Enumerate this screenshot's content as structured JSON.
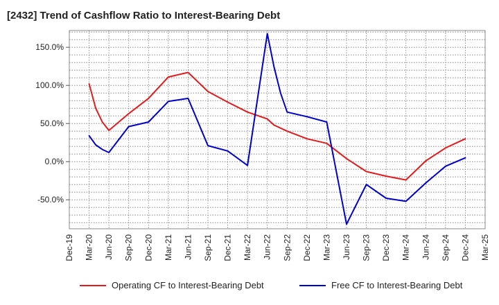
{
  "chart_data": {
    "type": "line",
    "title": "[2432]  Trend of Cashflow Ratio to Interest-Bearing Debt",
    "x_tick_labels": [
      "Dec-19",
      "Mar-20",
      "Jun-20",
      "Sep-20",
      "Dec-20",
      "Mar-21",
      "Jun-21",
      "Sep-21",
      "Dec-21",
      "Mar-22",
      "Jun-22",
      "Sep-22",
      "Dec-22",
      "Mar-23",
      "Jun-23",
      "Sep-23",
      "Dec-23",
      "Mar-24",
      "Jun-24",
      "Sep-24",
      "Dec-24",
      "Mar-25"
    ],
    "y_ticks": [
      -50,
      0,
      50,
      100,
      150
    ],
    "y_tick_labels": [
      "-50.0%",
      "0.0%",
      "50.0%",
      "100.0%",
      "150.0%"
    ],
    "ylim": [
      -88,
      172
    ],
    "grid": true,
    "legend_position": "bottom",
    "series": [
      {
        "name": "Operating CF to Interest-Bearing Debt",
        "color": "#e31a1c",
        "points": [
          [
            "Mar-20",
            102
          ],
          [
            "Apr-20",
            70
          ],
          [
            "May-20",
            52
          ],
          [
            "Jun-20",
            41
          ],
          [
            "Sep-20",
            63
          ],
          [
            "Dec-20",
            83
          ],
          [
            "Mar-21",
            111
          ],
          [
            "Jun-21",
            117
          ],
          [
            "Sep-21",
            92
          ],
          [
            "Dec-21",
            78
          ],
          [
            "Mar-22",
            65
          ],
          [
            "Jun-22",
            56
          ],
          [
            "Jul-22",
            48
          ],
          [
            "Sep-22",
            40
          ],
          [
            "Dec-22",
            30
          ],
          [
            "Mar-23",
            24
          ],
          [
            "Jun-23",
            4
          ],
          [
            "Sep-23",
            -13
          ],
          [
            "Dec-23",
            -19
          ],
          [
            "Mar-24",
            -24
          ],
          [
            "Jun-24",
            1
          ],
          [
            "Sep-24",
            18
          ],
          [
            "Dec-24",
            30
          ]
        ]
      },
      {
        "name": "Free CF to Interest-Bearing Debt",
        "color": "#0000cc",
        "points": [
          [
            "Mar-20",
            34
          ],
          [
            "Apr-20",
            22
          ],
          [
            "May-20",
            16
          ],
          [
            "Jun-20",
            12
          ],
          [
            "Sep-20",
            46
          ],
          [
            "Dec-20",
            52
          ],
          [
            "Mar-21",
            79
          ],
          [
            "Jun-21",
            83
          ],
          [
            "Sep-21",
            21
          ],
          [
            "Dec-21",
            14
          ],
          [
            "Mar-22",
            -5
          ],
          [
            "Jun-22",
            168
          ],
          [
            "Jul-22",
            125
          ],
          [
            "Aug-22",
            90
          ],
          [
            "Sep-22",
            65
          ],
          [
            "Dec-22",
            59
          ],
          [
            "Mar-23",
            52
          ],
          [
            "Jun-23",
            -82
          ],
          [
            "Sep-23",
            -30
          ],
          [
            "Dec-23",
            -48
          ],
          [
            "Mar-24",
            -52
          ],
          [
            "Jun-24",
            -28
          ],
          [
            "Sep-24",
            -6
          ],
          [
            "Dec-24",
            5
          ]
        ]
      }
    ]
  }
}
